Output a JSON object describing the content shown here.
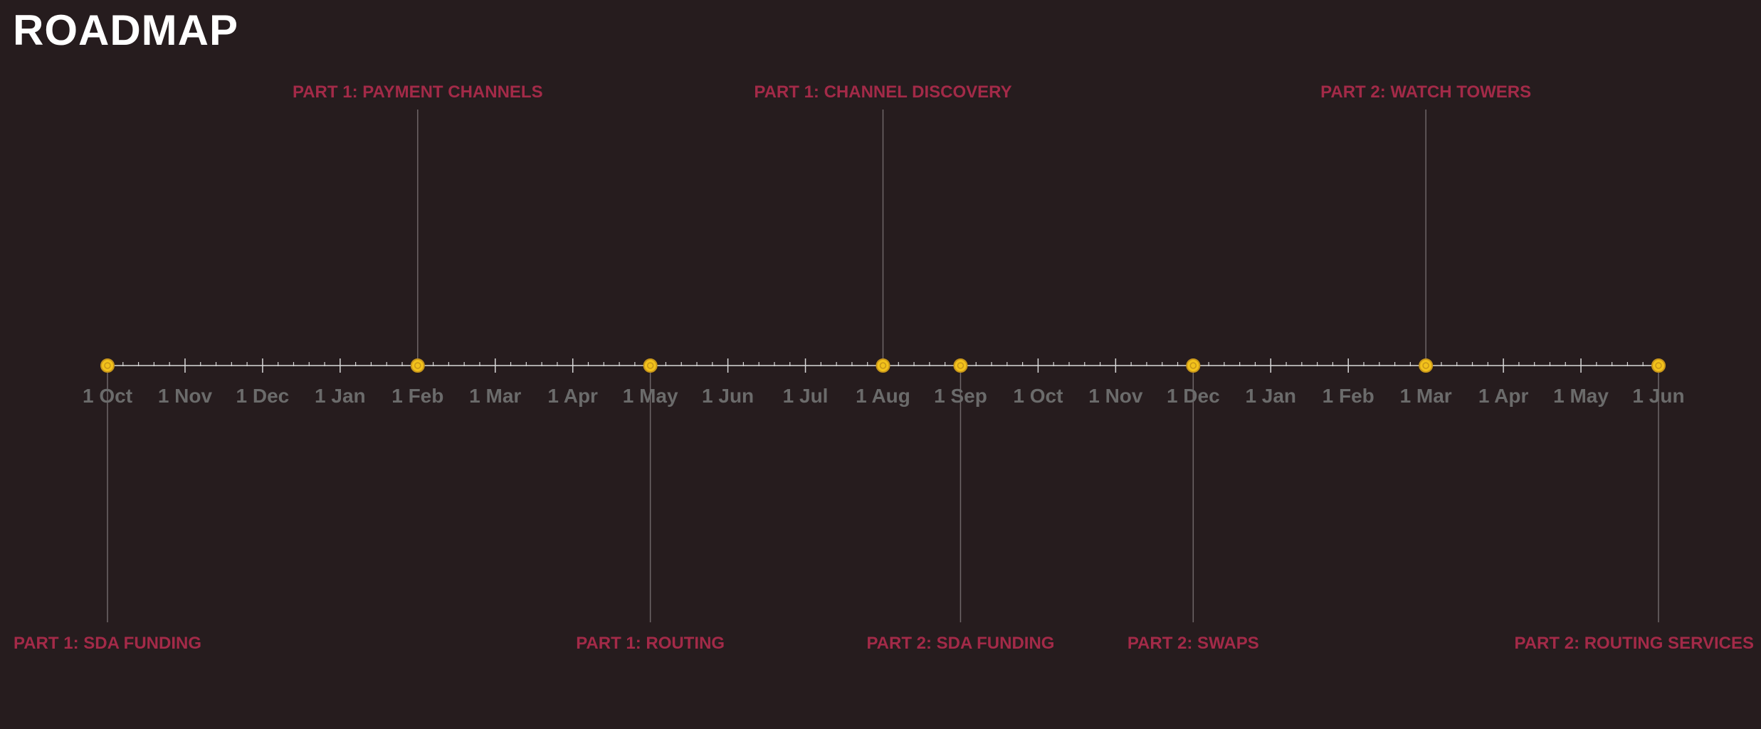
{
  "title": "ROADMAP",
  "colors": {
    "background": "#261c1e",
    "title": "#ffffff",
    "axis": "#d9d9d9",
    "month_label": "#6b6b6b",
    "milestone_label": "#a32a48",
    "connector": "#6e6668",
    "marker_fill": "#f2c21b",
    "marker_ring": "#c9971a"
  },
  "months": [
    "1 Oct",
    "1 Nov",
    "1 Dec",
    "1 Jan",
    "1 Feb",
    "1 Mar",
    "1 Apr",
    "1 May",
    "1 Jun",
    "1 Jul",
    "1 Aug",
    "1 Sep",
    "1 Oct",
    "1 Nov",
    "1 Dec",
    "1 Jan",
    "1 Feb",
    "1 Mar",
    "1 Apr",
    "1 May",
    "1 Jun"
  ],
  "milestones": [
    {
      "label": "PART 1: SDA FUNDING",
      "month_index": 0.0,
      "position": "below"
    },
    {
      "label": "PART 1: PAYMENT CHANNELS",
      "month_index": 4.0,
      "position": "above"
    },
    {
      "label": "PART 1: ROUTING",
      "month_index": 7.0,
      "position": "below"
    },
    {
      "label": "PART 1: CHANNEL DISCOVERY",
      "month_index": 10.0,
      "position": "above"
    },
    {
      "label": "PART 2: SDA FUNDING",
      "month_index": 11.0,
      "position": "below"
    },
    {
      "label": "PART 2: SWAPS",
      "month_index": 14.0,
      "position": "below"
    },
    {
      "label": "PART 2: WATCH TOWERS",
      "month_index": 17.0,
      "position": "above"
    },
    {
      "label": "PART 2: ROUTING SERVICES",
      "month_index": 20.0,
      "position": "below"
    }
  ]
}
